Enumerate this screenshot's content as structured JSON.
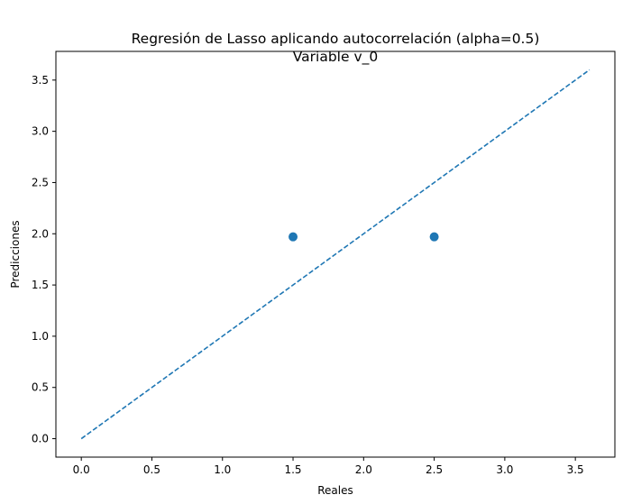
{
  "chart_data": {
    "type": "scatter",
    "title": "Regresión de Lasso aplicando autocorrelación (alpha=0.5)",
    "subtitle": "Variable v_0",
    "xlabel": "Reales",
    "ylabel": "Predicciones",
    "xlim": [
      -0.18,
      3.78
    ],
    "ylim": [
      -0.18,
      3.78
    ],
    "xticks": [
      "0.0",
      "0.5",
      "1.0",
      "1.5",
      "2.0",
      "2.5",
      "3.0",
      "3.5"
    ],
    "yticks": [
      "0.0",
      "0.5",
      "1.0",
      "1.5",
      "2.0",
      "2.5",
      "3.0",
      "3.5"
    ],
    "grid": false,
    "points": [
      {
        "x": 1.5,
        "y": 1.97
      },
      {
        "x": 2.5,
        "y": 1.97
      }
    ],
    "reference_line": {
      "x": [
        0.0,
        3.6
      ],
      "y": [
        0.0,
        3.6
      ],
      "style": "dashed"
    },
    "color": "#1f77b4"
  }
}
